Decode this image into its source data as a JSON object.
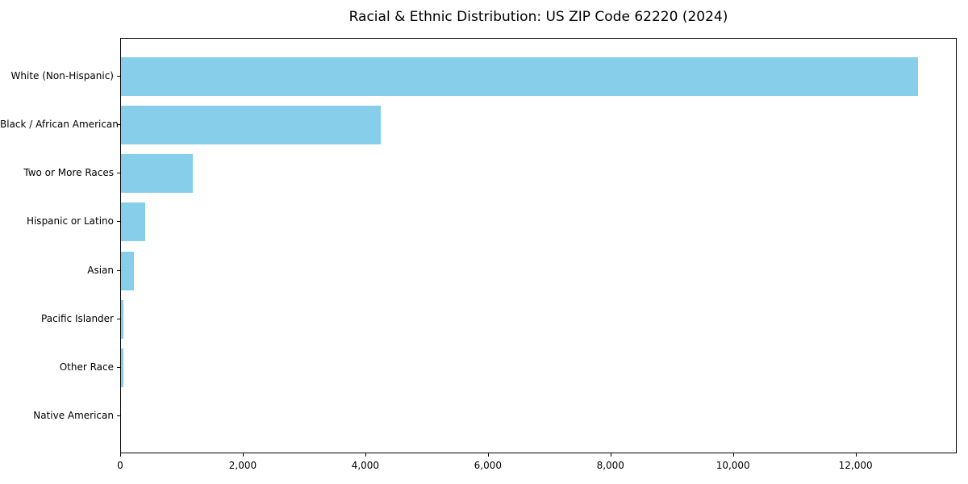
{
  "chart_data": {
    "type": "bar",
    "orientation": "horizontal",
    "title": "Racial & Ethnic Distribution: US ZIP Code 62220 (2024)",
    "categories": [
      "White (Non-Hispanic)",
      "Black / African American",
      "Two or More Races",
      "Hispanic or Latino",
      "Asian",
      "Pacific Islander",
      "Other Race",
      "Native American"
    ],
    "values": [
      13000,
      4240,
      1170,
      400,
      210,
      40,
      40,
      0
    ],
    "xlabel": "",
    "ylabel": "",
    "xlim": [
      0,
      13650
    ],
    "x_ticks": [
      0,
      2000,
      4000,
      6000,
      8000,
      10000,
      12000
    ],
    "x_tick_labels": [
      "0",
      "2,000",
      "4,000",
      "6,000",
      "8,000",
      "10,000",
      "12,000"
    ],
    "bar_color": "#87CEEB",
    "background_color": "#ffffff",
    "grid": false,
    "legend": false
  }
}
